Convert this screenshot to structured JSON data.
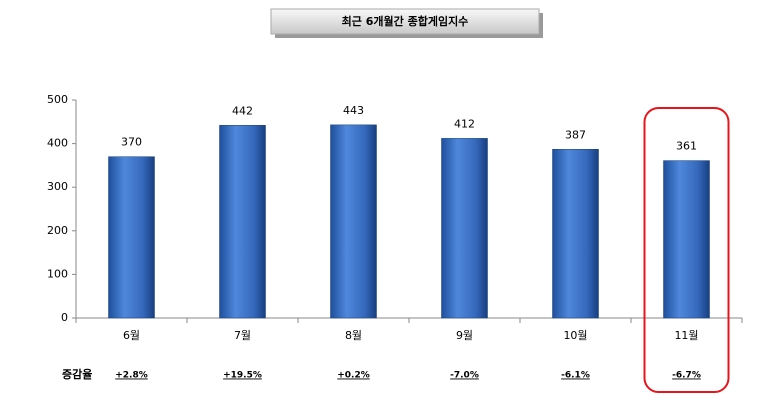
{
  "chart_data": {
    "type": "bar",
    "title": "최근 6개월간 종합게임지수",
    "categories": [
      "6월",
      "7월",
      "8월",
      "9월",
      "10월",
      "11월"
    ],
    "values": [
      370,
      442,
      443,
      412,
      387,
      361
    ],
    "color": "#3a70c8",
    "ylim": [
      0,
      500
    ],
    "yticks": [
      0,
      100,
      200,
      300,
      400,
      500
    ],
    "change_title": "증감율",
    "changes": [
      2.8,
      19.5,
      0.2,
      -7.0,
      -6.1,
      -6.7
    ],
    "change_labels": [
      "+2.8%",
      "+19.5%",
      "+0.2%",
      "-7.0%",
      "-6.1%",
      "-6.7%"
    ],
    "positive_color": "#e0101a",
    "negative_color": "#3a6fc0",
    "highlight": {
      "index": 5,
      "color": "#e8141c"
    }
  }
}
